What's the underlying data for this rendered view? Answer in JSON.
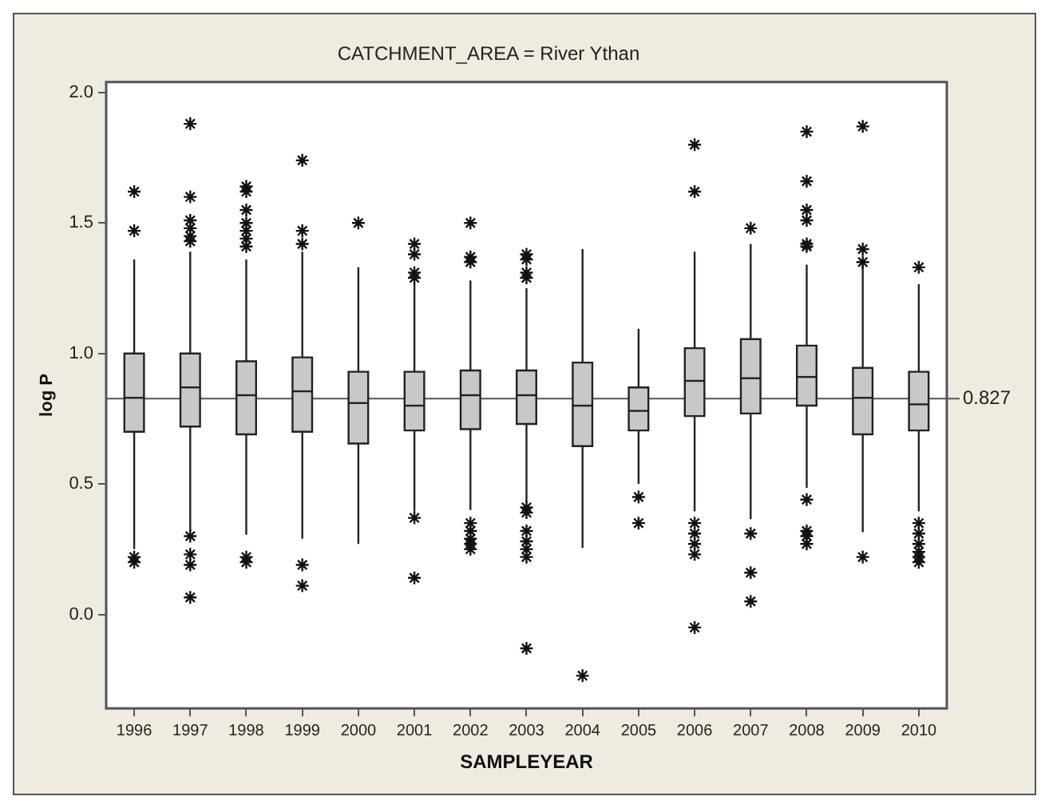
{
  "chart_data": {
    "type": "box",
    "title": "CATCHMENT_AREA = River Ythan",
    "xlabel": "SAMPLEYEAR",
    "ylabel": "log P",
    "categories": [
      "1996",
      "1997",
      "1998",
      "1999",
      "2000",
      "2001",
      "2002",
      "2003",
      "2004",
      "2005",
      "2006",
      "2007",
      "2008",
      "2009",
      "2010"
    ],
    "color": "#c8c8c8",
    "marker": "star",
    "legend": false,
    "grid": false,
    "ylim": [
      -0.36,
      2.04
    ],
    "yticks": [
      {
        "value": 0,
        "label": "0.0"
      },
      {
        "value": 0.5,
        "label": "0.5"
      },
      {
        "value": 1,
        "label": "1.0"
      },
      {
        "value": 1.5,
        "label": "1.5"
      },
      {
        "value": 2,
        "label": "2.0"
      }
    ],
    "ref_lines": [
      {
        "axis": "y",
        "value": 0.827,
        "label": "0.827",
        "color": "#555555"
      }
    ],
    "boxes": [
      {
        "low": 0.25,
        "q1": 0.7,
        "median": 0.83,
        "q3": 1.0,
        "high": 1.36,
        "outliers": [
          1.62,
          1.47,
          0.22,
          0.2
        ]
      },
      {
        "low": 0.32,
        "q1": 0.72,
        "median": 0.87,
        "q3": 1.0,
        "high": 1.39,
        "outliers": [
          1.88,
          1.6,
          1.51,
          1.48,
          1.45,
          1.43,
          0.3,
          0.23,
          0.19,
          0.065
        ]
      },
      {
        "low": 0.305,
        "q1": 0.69,
        "median": 0.84,
        "q3": 0.97,
        "high": 1.36,
        "outliers": [
          1.64,
          1.62,
          1.55,
          1.5,
          1.47,
          1.44,
          1.41,
          0.22,
          0.2
        ]
      },
      {
        "low": 0.29,
        "q1": 0.7,
        "median": 0.855,
        "q3": 0.985,
        "high": 1.39,
        "outliers": [
          1.74,
          1.47,
          1.42,
          0.19,
          0.11
        ]
      },
      {
        "low": 0.27,
        "q1": 0.655,
        "median": 0.81,
        "q3": 0.93,
        "high": 1.33,
        "outliers": [
          1.5
        ]
      },
      {
        "low": 0.395,
        "q1": 0.705,
        "median": 0.8,
        "q3": 0.93,
        "high": 1.27,
        "outliers": [
          1.42,
          1.38,
          1.31,
          1.29,
          0.37,
          0.14
        ]
      },
      {
        "low": 0.4,
        "q1": 0.71,
        "median": 0.84,
        "q3": 0.935,
        "high": 1.28,
        "outliers": [
          1.5,
          1.37,
          1.35,
          0.35,
          0.32,
          0.29,
          0.27,
          0.25
        ]
      },
      {
        "low": 0.43,
        "q1": 0.73,
        "median": 0.84,
        "q3": 0.935,
        "high": 1.25,
        "outliers": [
          1.38,
          1.36,
          1.31,
          1.29,
          0.41,
          0.39,
          0.32,
          0.28,
          0.25,
          0.22,
          -0.13
        ]
      },
      {
        "low": 0.255,
        "q1": 0.645,
        "median": 0.8,
        "q3": 0.965,
        "high": 1.4,
        "outliers": [
          -0.235
        ]
      },
      {
        "low": 0.5,
        "q1": 0.705,
        "median": 0.78,
        "q3": 0.87,
        "high": 1.095,
        "outliers": [
          0.45,
          0.35
        ]
      },
      {
        "low": 0.395,
        "q1": 0.76,
        "median": 0.895,
        "q3": 1.02,
        "high": 1.39,
        "outliers": [
          1.8,
          1.62,
          0.35,
          0.31,
          0.27,
          0.23,
          -0.05
        ]
      },
      {
        "low": 0.365,
        "q1": 0.77,
        "median": 0.905,
        "q3": 1.055,
        "high": 1.42,
        "outliers": [
          1.48,
          0.31,
          0.16,
          0.05
        ]
      },
      {
        "low": 0.485,
        "q1": 0.8,
        "median": 0.91,
        "q3": 1.03,
        "high": 1.34,
        "outliers": [
          1.85,
          1.66,
          1.55,
          1.51,
          1.42,
          1.41,
          0.44,
          0.32,
          0.3,
          0.27
        ]
      },
      {
        "low": 0.315,
        "q1": 0.69,
        "median": 0.83,
        "q3": 0.945,
        "high": 1.34,
        "outliers": [
          1.87,
          1.4,
          1.35,
          0.22
        ]
      },
      {
        "low": 0.395,
        "q1": 0.705,
        "median": 0.805,
        "q3": 0.93,
        "high": 1.265,
        "outliers": [
          1.33,
          0.35,
          0.31,
          0.27,
          0.24,
          0.22,
          0.2
        ]
      }
    ]
  }
}
